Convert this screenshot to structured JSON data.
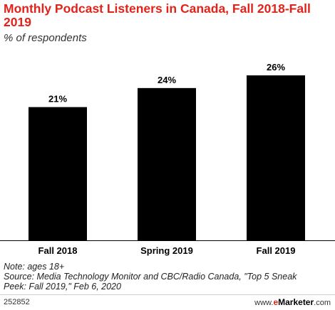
{
  "title": "Monthly Podcast Listeners in Canada, Fall 2018-Fall 2019",
  "subtitle": "% of respondents",
  "chart_data": {
    "type": "bar",
    "categories": [
      "Fall 2018",
      "Spring 2019",
      "Fall 2019"
    ],
    "values": [
      21,
      24,
      26
    ],
    "value_labels": [
      "21%",
      "24%",
      "26%"
    ],
    "ylim": [
      0,
      26
    ],
    "grid": false,
    "legend": "none",
    "bar_color": "#000000"
  },
  "notes": {
    "note": "Note: ages 18+",
    "source": "Source: Media Technology Monitor and CBC/Radio Canada, \"Top 5 Sneak Peek: Fall 2019,\" Feb 6, 2020"
  },
  "footer": {
    "code": "252852",
    "brand_prefix": "www.",
    "brand_e": "e",
    "brand_name": "Marketer",
    "brand_suffix": ".com"
  },
  "colors": {
    "accent": "#e2231a",
    "bar": "#000000",
    "rule": "#cccccc"
  }
}
